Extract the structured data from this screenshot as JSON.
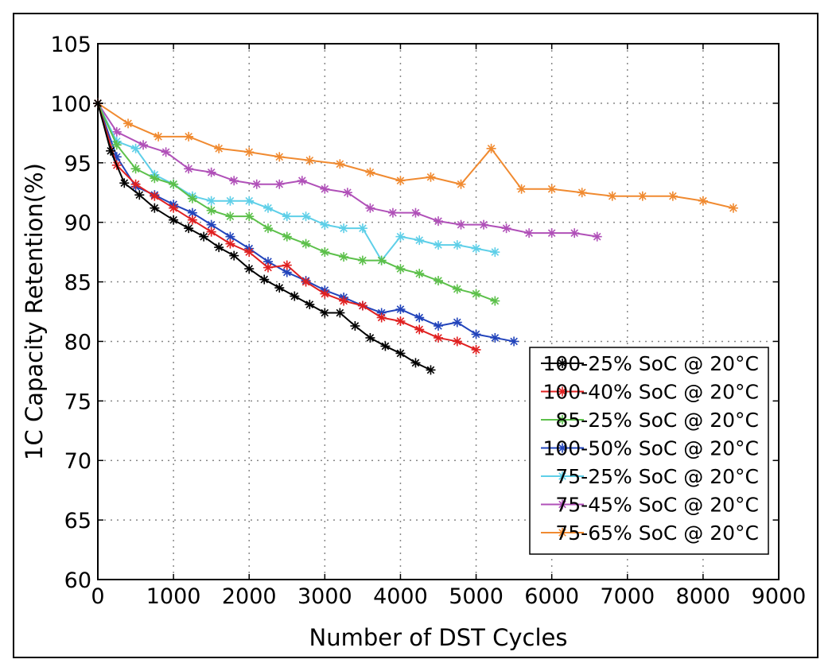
{
  "chart_data": {
    "type": "line",
    "xlabel": "Number of DST Cycles",
    "ylabel": "1C Capacity Retention(%)",
    "xlim": [
      0,
      9000
    ],
    "ylim": [
      60,
      105
    ],
    "xticks": [
      0,
      1000,
      2000,
      3000,
      4000,
      5000,
      6000,
      7000,
      8000,
      9000
    ],
    "yticks": [
      60,
      65,
      70,
      75,
      80,
      85,
      90,
      95,
      100,
      105
    ],
    "grid": true,
    "legend_position": "bottom-right",
    "marker": "asterisk",
    "series": [
      {
        "name": "100-25% SoC @ 20°C",
        "color": "#000000",
        "x": [
          0,
          170,
          350,
          550,
          750,
          1000,
          1200,
          1400,
          1600,
          1800,
          2000,
          2200,
          2400,
          2600,
          2800,
          3000,
          3200,
          3400,
          3600,
          3800,
          4000,
          4200,
          4400
        ],
        "y": [
          100,
          96.0,
          93.3,
          92.3,
          91.2,
          90.2,
          89.5,
          88.8,
          87.9,
          87.2,
          86.1,
          85.2,
          84.5,
          83.8,
          83.1,
          82.4,
          82.4,
          81.3,
          80.3,
          79.6,
          79.0,
          78.2,
          77.6
        ]
      },
      {
        "name": "100-40% SoC @ 20°C",
        "color": "#e02020",
        "x": [
          0,
          250,
          500,
          750,
          1000,
          1250,
          1500,
          1750,
          2000,
          2250,
          2500,
          2750,
          3000,
          3250,
          3500,
          3750,
          4000,
          4250,
          4500,
          4750,
          5000
        ],
        "y": [
          100,
          94.8,
          93.2,
          92.2,
          91.2,
          90.2,
          89.2,
          88.2,
          87.5,
          86.2,
          86.4,
          85.0,
          84.0,
          83.4,
          83.0,
          82.0,
          81.7,
          81.0,
          80.3,
          80.0,
          79.3
        ]
      },
      {
        "name": "85-25% SoC @ 20°C",
        "color": "#5cc04a",
        "x": [
          0,
          250,
          500,
          750,
          1000,
          1250,
          1500,
          1750,
          2000,
          2250,
          2500,
          2750,
          3000,
          3250,
          3500,
          3750,
          4000,
          4250,
          4500,
          4750,
          5000,
          5250
        ],
        "y": [
          100,
          96.5,
          94.5,
          93.7,
          93.2,
          92.0,
          91.0,
          90.5,
          90.5,
          89.5,
          88.8,
          88.2,
          87.5,
          87.1,
          86.8,
          86.8,
          86.1,
          85.7,
          85.1,
          84.4,
          84.0,
          83.4
        ]
      },
      {
        "name": "100-50% SoC @ 20°C",
        "color": "#2244bb",
        "x": [
          0,
          250,
          500,
          750,
          1000,
          1250,
          1500,
          1750,
          2000,
          2250,
          2500,
          2750,
          3000,
          3250,
          3500,
          3750,
          4000,
          4250,
          4500,
          4750,
          5000,
          5250,
          5500
        ],
        "y": [
          100,
          95.5,
          93.0,
          92.3,
          91.5,
          90.8,
          89.8,
          88.8,
          87.8,
          86.7,
          85.8,
          85.1,
          84.3,
          83.7,
          83.0,
          82.4,
          82.7,
          82.0,
          81.3,
          81.6,
          80.6,
          80.3,
          80.0
        ]
      },
      {
        "name": "75-25% SoC @ 20°C",
        "color": "#5ecfe8",
        "x": [
          0,
          250,
          500,
          750,
          1000,
          1250,
          1500,
          1750,
          2000,
          2250,
          2500,
          2750,
          3000,
          3250,
          3500,
          3750,
          4000,
          4250,
          4500,
          4750,
          5000,
          5250
        ],
        "y": [
          100,
          96.8,
          96.2,
          94.0,
          93.2,
          92.2,
          91.8,
          91.8,
          91.8,
          91.2,
          90.5,
          90.5,
          89.8,
          89.5,
          89.5,
          86.8,
          88.8,
          88.5,
          88.1,
          88.1,
          87.8,
          87.5
        ]
      },
      {
        "name": "75-45% SoC @ 20°C",
        "color": "#b050b8",
        "x": [
          0,
          250,
          600,
          900,
          1200,
          1500,
          1800,
          2100,
          2400,
          2700,
          3000,
          3300,
          3600,
          3900,
          4200,
          4500,
          4800,
          5100,
          5400,
          5700,
          6000,
          6300,
          6600
        ],
        "y": [
          100,
          97.6,
          96.5,
          95.9,
          94.5,
          94.2,
          93.5,
          93.2,
          93.2,
          93.5,
          92.8,
          92.5,
          91.2,
          90.8,
          90.8,
          90.1,
          89.8,
          89.8,
          89.5,
          89.1,
          89.1,
          89.1,
          88.8
        ]
      },
      {
        "name": "75-65% SoC @ 20°C",
        "color": "#f08a30",
        "x": [
          0,
          400,
          800,
          1200,
          1600,
          2000,
          2400,
          2800,
          3200,
          3600,
          4000,
          4400,
          4800,
          5200,
          5600,
          6000,
          6400,
          6800,
          7200,
          7600,
          8000,
          8400
        ],
        "y": [
          100,
          98.3,
          97.2,
          97.2,
          96.2,
          95.9,
          95.5,
          95.2,
          94.9,
          94.2,
          93.5,
          93.8,
          93.2,
          96.2,
          92.8,
          92.8,
          92.5,
          92.2,
          92.2,
          92.2,
          91.8,
          91.2
        ]
      }
    ]
  }
}
